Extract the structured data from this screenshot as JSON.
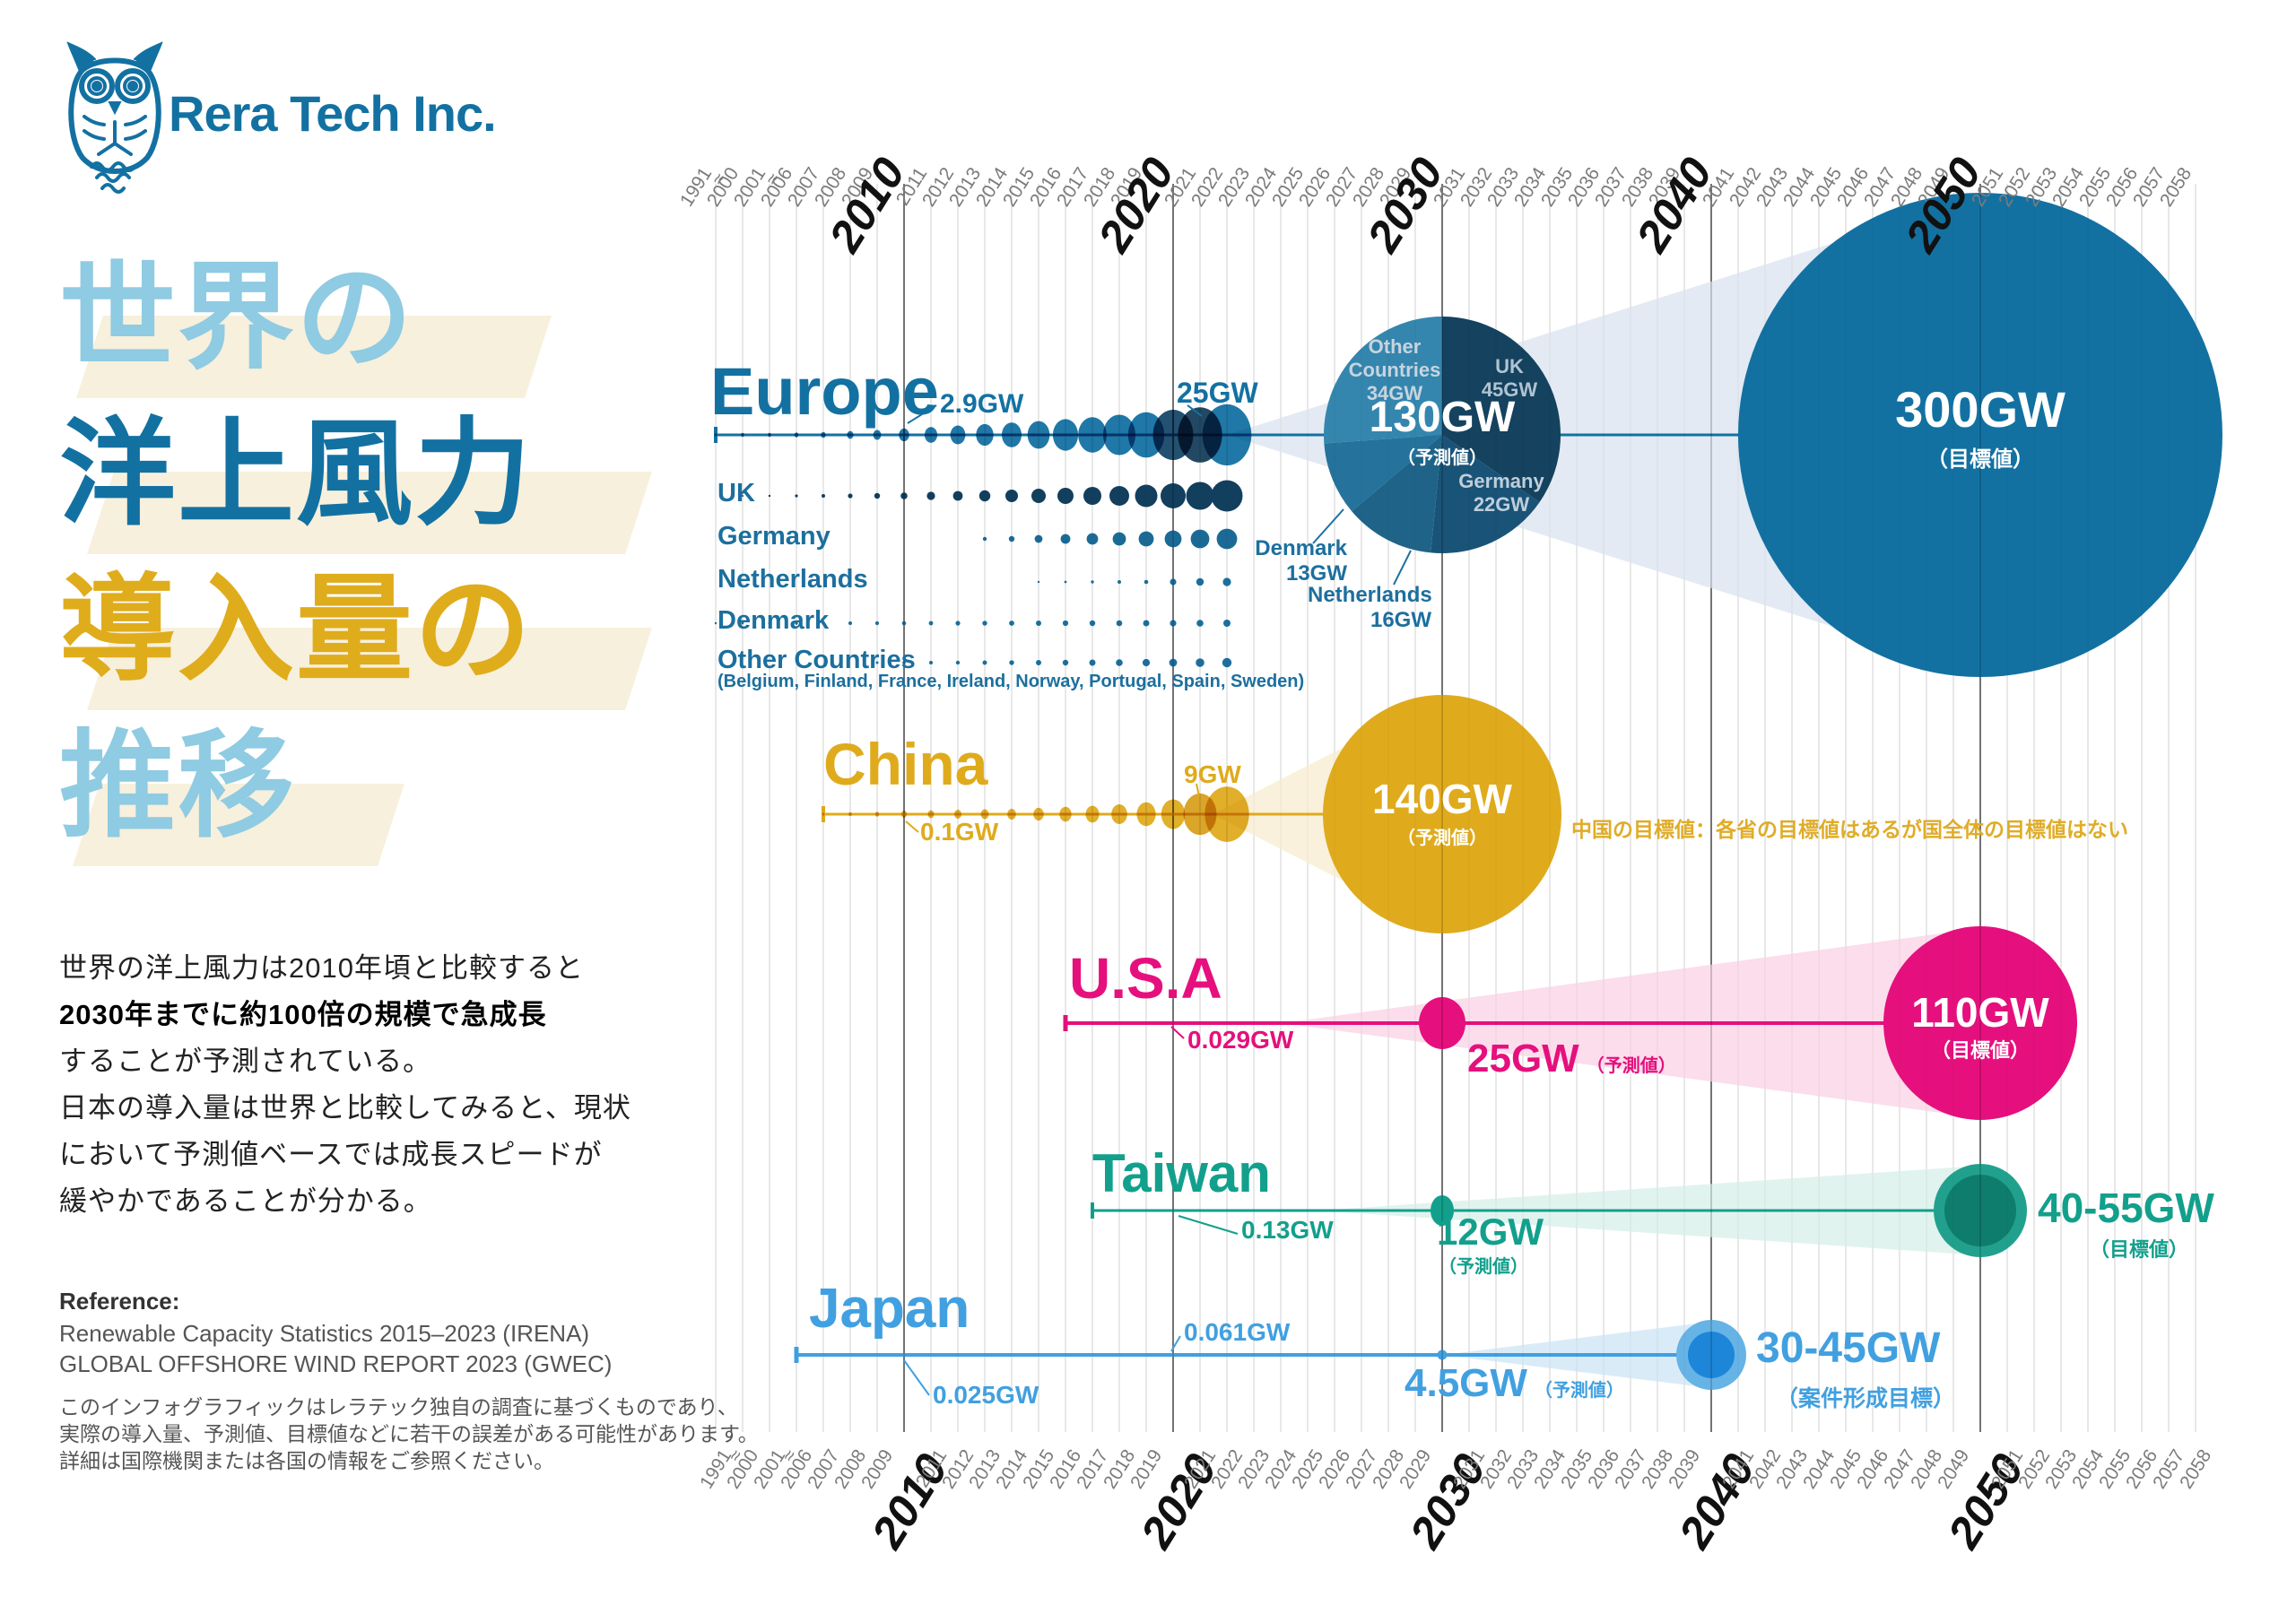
{
  "company": "Rera Tech Inc.",
  "title": {
    "lines": [
      "世界の",
      "洋上風力",
      "導入量の",
      "推移"
    ]
  },
  "intro": {
    "lines": [
      "世界の洋上風力は2010年頃と比較すると",
      "2030年までに約100倍の規模で急成長",
      "することが予測されている。",
      "日本の導入量は世界と比較してみると、現状",
      "において予測値ベースでは成長スピードが",
      "緩やかであることが分かる。"
    ]
  },
  "reference": {
    "heading": "Reference:",
    "items": [
      "Renewable Capacity Statistics 2015–2023 (IRENA)",
      "GLOBAL OFFSHORE WIND REPORT 2023 (GWEC)"
    ]
  },
  "disclaimer": {
    "lines": [
      "このインフォグラフィックはレラテック独自の調査に基づくものであり、",
      "実際の導入量、予測値、目標値などに若干の誤差がある可能性があります。",
      "詳細は国際機関または各国の情報をご参照ください。"
    ]
  },
  "chart_data": {
    "type": "bubble-timeline",
    "title": "世界の洋上風力導入量の推移",
    "x_axis": {
      "tick_years": [
        "1991",
        "2000",
        "2001",
        "2006",
        "2007",
        "2008",
        "2009",
        "2010",
        "2011",
        "2012",
        "2013",
        "2014",
        "2015",
        "2016",
        "2017",
        "2018",
        "2019",
        "2020",
        "2021",
        "2022",
        "2023",
        "2024",
        "2025",
        "2026",
        "2027",
        "2028",
        "2029",
        "2030",
        "2031",
        "2032",
        "2033",
        "2034",
        "2035",
        "2036",
        "2037",
        "2038",
        "2039",
        "2040",
        "2041",
        "2042",
        "2043",
        "2044",
        "2045",
        "2046",
        "2047",
        "2048",
        "2049",
        "2050",
        "2051",
        "2052",
        "2053",
        "2054",
        "2055",
        "2056",
        "2057",
        "2058"
      ],
      "decade_years": [
        "2010",
        "2020",
        "2030",
        "2040",
        "2050"
      ],
      "break_symbol": "≈",
      "break_after": [
        "1991",
        "2001"
      ]
    },
    "series": [
      {
        "name": "Europe",
        "heading": "Europe",
        "color": "#1371A2",
        "start_year": 1991,
        "bubbles": [
          [
            1991,
            1.5
          ],
          [
            2000,
            2
          ],
          [
            2001,
            2
          ],
          [
            2006,
            2.5
          ],
          [
            2007,
            3
          ],
          [
            2008,
            4
          ],
          [
            2009,
            5
          ],
          [
            2010,
            6.5
          ],
          [
            2011,
            8
          ],
          [
            2012,
            9.5
          ],
          [
            2013,
            11
          ],
          [
            2014,
            12.5
          ],
          [
            2015,
            14
          ],
          [
            2016,
            16
          ],
          [
            2017,
            18
          ],
          [
            2018,
            20.5
          ],
          [
            2019,
            23
          ],
          [
            2020,
            25.5
          ],
          [
            2021,
            28
          ],
          [
            2022,
            31
          ]
        ],
        "bubble_color_overrides": {
          "2020": "#17486A",
          "2021": "#163E5B"
        },
        "point_labels": [
          {
            "text": "2.9GW",
            "year": 2010
          },
          {
            "text": "25GW",
            "year": 2021
          }
        ],
        "forecast_2030": {
          "value": "130GW",
          "qualifier": "（予測値）",
          "total_gw": 130,
          "breakdown": [
            {
              "country": "UK",
              "gw": 45,
              "label": "UK\n45GW",
              "color": "#14425F",
              "placement": "inside"
            },
            {
              "country": "Germany",
              "gw": 22,
              "label": "Germany\n22GW",
              "color": "#1A5378",
              "placement": "inside"
            },
            {
              "country": "Netherlands",
              "gw": 16,
              "label": "Netherlands\n16GW",
              "color": "#1F6488",
              "placement": "outside"
            },
            {
              "country": "Denmark",
              "gw": 13,
              "label": "Denmark\n13GW",
              "color": "#25729C",
              "placement": "outside"
            },
            {
              "country": "Other Countries",
              "gw": 34,
              "label": "Other\nCountries\n34GW",
              "color": "#3486AE",
              "placement": "inside"
            }
          ]
        },
        "target": {
          "year": 2050,
          "value": "300GW",
          "qualifier": "（目標値）"
        },
        "subrows": [
          {
            "name": "UK",
            "color": "#133F5E",
            "dots": [
              [
                2000,
                1
              ],
              [
                2001,
                1.2
              ],
              [
                2006,
                1.6
              ],
              [
                2007,
                2
              ],
              [
                2008,
                2.6
              ],
              [
                2009,
                3.2
              ],
              [
                2010,
                3.8
              ],
              [
                2011,
                4.6
              ],
              [
                2012,
                5.4
              ],
              [
                2013,
                6.2
              ],
              [
                2014,
                7
              ],
              [
                2015,
                8
              ],
              [
                2016,
                9
              ],
              [
                2017,
                10
              ],
              [
                2018,
                11
              ],
              [
                2019,
                12.5
              ],
              [
                2020,
                14
              ],
              [
                2021,
                15.5
              ],
              [
                2022,
                17.5
              ]
            ]
          },
          {
            "name": "Germany",
            "color": "#1B6A96",
            "dots": [
              [
                2013,
                2.2
              ],
              [
                2014,
                3.2
              ],
              [
                2015,
                4.4
              ],
              [
                2016,
                5.4
              ],
              [
                2017,
                6.4
              ],
              [
                2018,
                7.4
              ],
              [
                2019,
                8.4
              ],
              [
                2020,
                9.4
              ],
              [
                2021,
                10.4
              ],
              [
                2022,
                11.4
              ]
            ]
          },
          {
            "name": "Netherlands",
            "color": "#1C6F9E",
            "dots": [
              [
                2015,
                1.2
              ],
              [
                2016,
                1.4
              ],
              [
                2017,
                1.7
              ],
              [
                2018,
                2
              ],
              [
                2019,
                2.3
              ],
              [
                2020,
                3.6
              ],
              [
                2021,
                4.2
              ],
              [
                2022,
                4.6
              ]
            ]
          },
          {
            "name": "Denmark",
            "color": "#1C6F9E",
            "dots": [
              [
                1991,
                1.2
              ],
              [
                2000,
                1.4
              ],
              [
                2001,
                1.5
              ],
              [
                2006,
                1.7
              ],
              [
                2007,
                1.8
              ],
              [
                2008,
                2
              ],
              [
                2009,
                2.1
              ],
              [
                2010,
                2.3
              ],
              [
                2011,
                2.4
              ],
              [
                2012,
                2.6
              ],
              [
                2013,
                2.7
              ],
              [
                2014,
                2.9
              ],
              [
                2015,
                3
              ],
              [
                2016,
                3.1
              ],
              [
                2017,
                3.2
              ],
              [
                2018,
                3.3
              ],
              [
                2019,
                3.5
              ],
              [
                2020,
                3.6
              ],
              [
                2021,
                3.8
              ],
              [
                2022,
                4
              ]
            ]
          },
          {
            "name": "Other Countries",
            "note": "(Belgium, Finland, France, Ireland, Norway, Portugal, Spain, Sweden)",
            "color": "#1C6F9E",
            "dots": [
              [
                2009,
                1.5
              ],
              [
                2010,
                1.8
              ],
              [
                2011,
                2
              ],
              [
                2012,
                2.2
              ],
              [
                2013,
                2.5
              ],
              [
                2014,
                2.7
              ],
              [
                2015,
                3
              ],
              [
                2016,
                3.2
              ],
              [
                2017,
                3.5
              ],
              [
                2018,
                3.8
              ],
              [
                2019,
                4.1
              ],
              [
                2020,
                4.4
              ],
              [
                2021,
                4.8
              ],
              [
                2022,
                5.2
              ]
            ]
          }
        ]
      },
      {
        "name": "China",
        "heading": "China",
        "color": "#DFAB1D",
        "start_year": 2007,
        "bubbles": [
          [
            2007,
            1.5
          ],
          [
            2008,
            2
          ],
          [
            2009,
            2.5
          ],
          [
            2010,
            3.5
          ],
          [
            2011,
            4
          ],
          [
            2012,
            4.5
          ],
          [
            2013,
            5
          ],
          [
            2014,
            5.5
          ],
          [
            2015,
            6.5
          ],
          [
            2016,
            7.5
          ],
          [
            2017,
            8.5
          ],
          [
            2018,
            10
          ],
          [
            2019,
            12
          ],
          [
            2020,
            15
          ],
          [
            2021,
            21
          ],
          [
            2022,
            28
          ]
        ],
        "bubble_color_overrides": {
          "2021": "#D8A01E"
        },
        "point_labels": [
          {
            "text": "0.1GW",
            "year": 2010
          },
          {
            "text": "9GW",
            "year": 2021
          }
        ],
        "forecast_2030": {
          "value": "140GW",
          "qualifier": "（予測値）"
        },
        "target_note": "中国の目標値：各省の目標値はあるが国全体の目標値はない"
      },
      {
        "name": "U.S.A",
        "heading": "U.S.A",
        "color": "#E5107D",
        "start_year": 2016,
        "point_labels": [
          {
            "text": "0.029GW",
            "year": 2020
          }
        ],
        "forecast_2030": {
          "value": "25GW",
          "qualifier": "（予測値）"
        },
        "target": {
          "year": 2050,
          "value": "110GW",
          "qualifier": "（目標値）"
        }
      },
      {
        "name": "Taiwan",
        "heading": "Taiwan",
        "color": "#12A08C",
        "start_year": 2017,
        "point_labels": [
          {
            "text": "0.13GW",
            "year": 2020
          }
        ],
        "forecast_2030": {
          "value": "12GW",
          "qualifier": "（予測値）"
        },
        "target": {
          "year": 2050,
          "value": "40-55GW",
          "qualifier": "（目標値）",
          "outer_color": "#21A18D",
          "inner_color": "#0F7D6D"
        }
      },
      {
        "name": "Japan",
        "heading": "Japan",
        "color": "#41A0E0",
        "start_year": 2006,
        "point_labels": [
          {
            "text": "0.025GW",
            "year": 2010
          },
          {
            "text": "0.061GW",
            "year": 2020
          }
        ],
        "forecast_2030": {
          "value": "4.5GW",
          "qualifier": "（予測値）"
        },
        "target": {
          "year": 2040,
          "value": "30-45GW",
          "qualifier": "（案件形成目標）",
          "outer_color": "#66B3E6",
          "inner_color": "#1E86D8"
        }
      }
    ]
  }
}
